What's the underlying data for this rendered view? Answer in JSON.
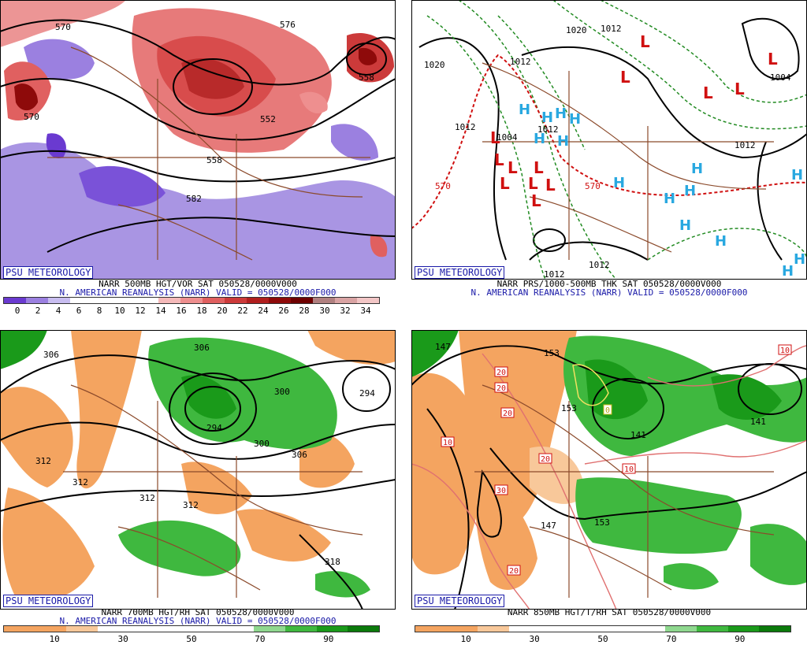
{
  "panels": [
    {
      "id": "vor",
      "badge": "PSU METEOROLOGY",
      "caption1": "NARR 500MB HGT/VOR SAT 050528/0000V000",
      "caption2": "N. AMERICAN REANALYSIS (NARR) VALID = 050528/0000F000",
      "scale_colors": [
        "#6a3ad0",
        "#9b80e0",
        "#c8bdf0",
        "#ffffff",
        "#ffffff",
        "#ffffff",
        "#ffffff",
        "#f4b9b9",
        "#ee8f8f",
        "#e06060",
        "#cc3a3a",
        "#b01e1e",
        "#8e0a0a",
        "#6e0000",
        "#b08080",
        "#d9a3a3",
        "#f2c6c6"
      ],
      "scale_labels": [
        "0",
        "2",
        "4",
        "6",
        "8",
        "10",
        "12",
        "14",
        "16",
        "18",
        "20",
        "22",
        "24",
        "26",
        "28",
        "30",
        "32",
        "34"
      ],
      "contour_labels": [
        "570",
        "576",
        "558",
        "552",
        "570",
        "582",
        "558"
      ]
    },
    {
      "id": "prs",
      "badge": "PSU METEOROLOGY",
      "caption1": "NARR PRS/1000-500MB THK SAT 050528/0000V000",
      "caption2": "N. AMERICAN REANALYSIS (NARR) VALID = 050528/0000F000",
      "contour_labels": [
        "1020",
        "1012",
        "1020",
        "1012",
        "1004",
        "1012",
        "1004",
        "1012",
        "1012",
        "570",
        "570",
        "1012",
        "1012"
      ],
      "low_symbol": "L",
      "high_symbol": "H"
    },
    {
      "id": "rh700",
      "badge": "PSU METEOROLOGY",
      "caption1": "NARR 700MB HGT/RH SAT 050528/0000V000",
      "caption2": "N. AMERICAN REANALYSIS (NARR) VALID = 050528/0000F000",
      "scale_colors": [
        "#f4a460",
        "#f4a460",
        "#f8c89a",
        "#ffffff",
        "#ffffff",
        "#ffffff",
        "#ffffff",
        "#ffffff",
        "#8fd88f",
        "#3fb83f",
        "#1a9a1a",
        "#0b7a0b"
      ],
      "scale_labels": [
        "10",
        "30",
        "50",
        "70",
        "90"
      ],
      "contour_labels": [
        "306",
        "306",
        "300",
        "294",
        "294",
        "300",
        "306",
        "312",
        "312",
        "312",
        "312",
        "318"
      ]
    },
    {
      "id": "t850",
      "badge": "PSU METEOROLOGY",
      "caption1": "NARR 850MB HGT/T/RH SAT 050528/0000V000",
      "caption2": "",
      "scale_colors": [
        "#f4a460",
        "#f4a460",
        "#f8c89a",
        "#ffffff",
        "#ffffff",
        "#ffffff",
        "#ffffff",
        "#ffffff",
        "#8fd88f",
        "#3fb83f",
        "#1a9a1a",
        "#0b7a0b"
      ],
      "scale_labels": [
        "10",
        "30",
        "50",
        "70",
        "90"
      ],
      "contour_labels": [
        "147",
        "153",
        "141",
        "141",
        "147",
        "153",
        "153",
        "10",
        "10",
        "10",
        "20",
        "20",
        "20",
        "20",
        "30",
        "20",
        "0"
      ]
    }
  ]
}
